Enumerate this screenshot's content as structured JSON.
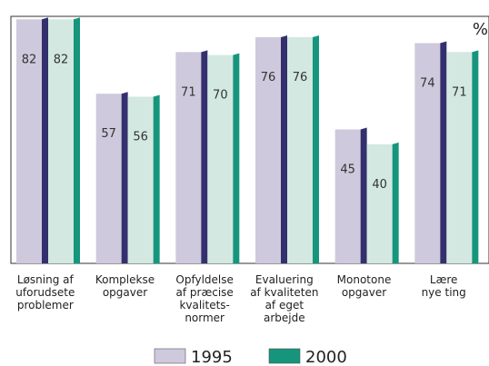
{
  "chart_data": {
    "type": "bar",
    "unit_label": "%",
    "categories": [
      [
        "Løsning af",
        "uforudsete",
        "problemer"
      ],
      [
        "Komplekse",
        "opgaver"
      ],
      [
        "Opfyldelse",
        "af præcise",
        "kvalitets-",
        "normer"
      ],
      [
        "Evaluering",
        "af kvaliteten",
        "af eget",
        "arbejde"
      ],
      [
        "Monotone",
        "opgaver"
      ],
      [
        "Lære",
        "nye ting"
      ]
    ],
    "series": [
      {
        "name": "1995",
        "color": "#cfc9dd",
        "side_color": "#34306e",
        "values": [
          82,
          57,
          71,
          76,
          45,
          74
        ]
      },
      {
        "name": "2000",
        "color": "#d2e8e1",
        "side_color": "#15967c",
        "values": [
          82,
          56,
          70,
          76,
          40,
          71
        ]
      }
    ],
    "ylim": [
      0,
      83
    ],
    "legend": "bottom"
  }
}
